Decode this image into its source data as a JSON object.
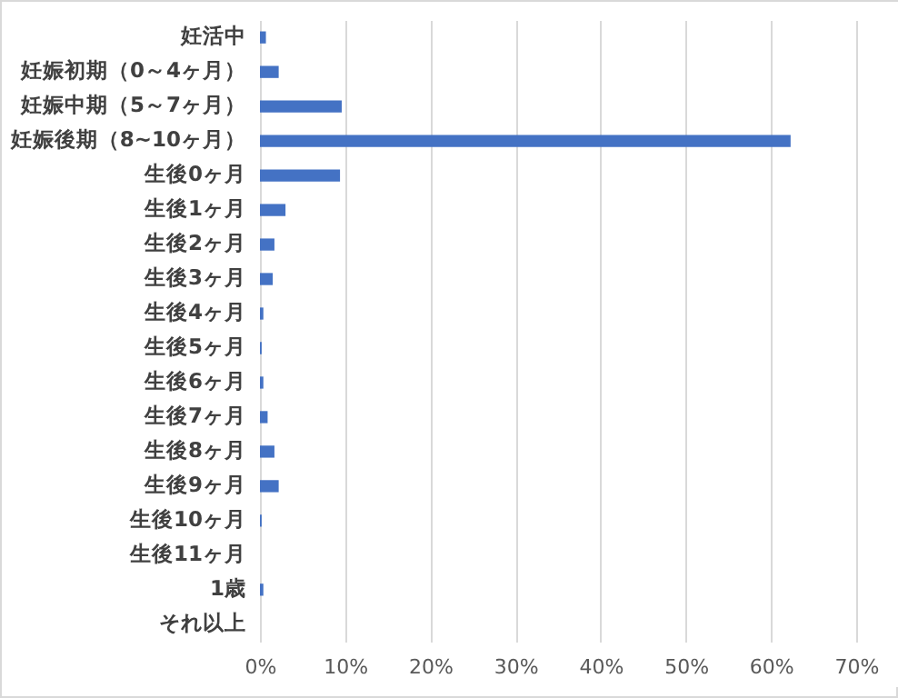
{
  "chart_data": {
    "type": "bar",
    "orientation": "horizontal",
    "categories": [
      "妊活中",
      "妊娠初期（0～4ヶ月）",
      "妊娠中期（5～7ヶ月）",
      "妊娠後期（8~10ヶ月）",
      "生後0ヶ月",
      "生後1ヶ月",
      "生後2ヶ月",
      "生後3ヶ月",
      "生後4ヶ月",
      "生後5ヶ月",
      "生後6ヶ月",
      "生後7ヶ月",
      "生後8ヶ月",
      "生後9ヶ月",
      "生後10ヶ月",
      "生後11ヶ月",
      "1歳",
      "それ以上"
    ],
    "values": [
      0.7,
      2.2,
      9.6,
      62.3,
      9.4,
      3.0,
      1.7,
      1.5,
      0.4,
      0.2,
      0.4,
      0.9,
      1.7,
      2.2,
      0.2,
      0,
      0.4,
      0
    ],
    "color": "#4472c4",
    "xlim": [
      0,
      70
    ],
    "xticks": [
      {
        "value": 0,
        "label": "0%"
      },
      {
        "value": 10,
        "label": "10%"
      },
      {
        "value": 20,
        "label": "20%"
      },
      {
        "value": 30,
        "label": "30%"
      },
      {
        "value": 40,
        "label": "40%"
      },
      {
        "value": 50,
        "label": "50%"
      },
      {
        "value": 60,
        "label": "60%"
      },
      {
        "value": 70,
        "label": "70%"
      }
    ],
    "grid": "x"
  }
}
